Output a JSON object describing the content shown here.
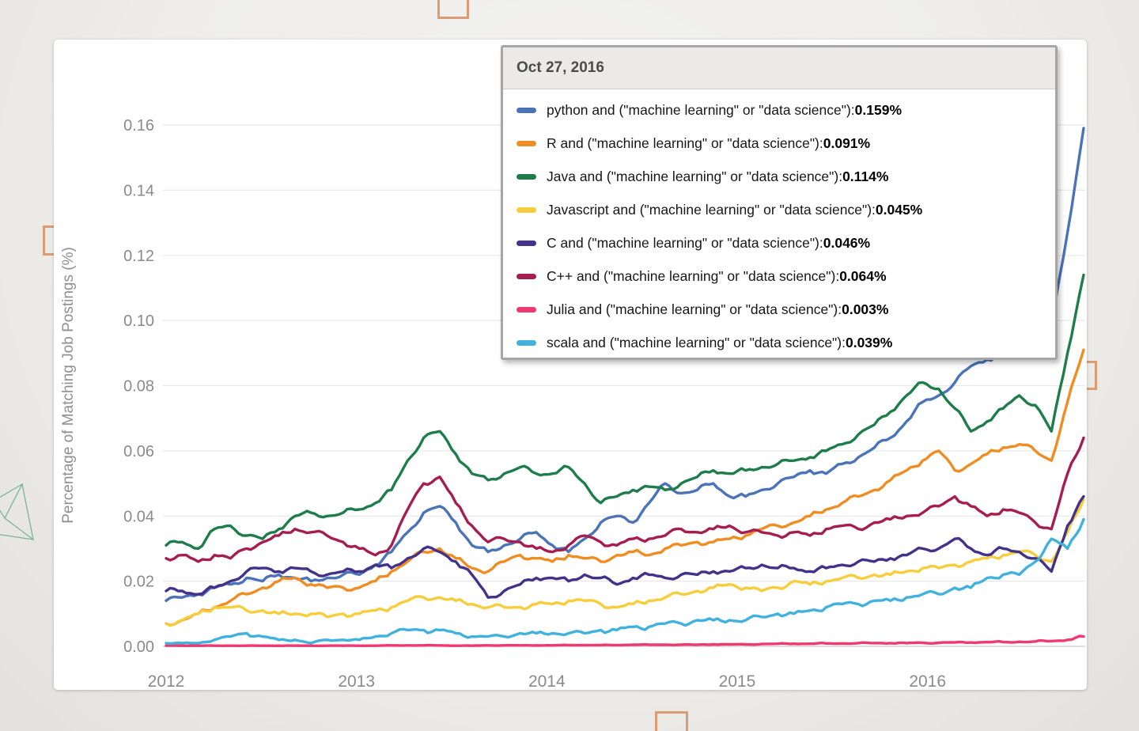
{
  "page": {
    "background_color": "#eeedea",
    "card_color": "#ffffff",
    "decoration_color": "#db9b73",
    "wireframe_color": "#7bb398"
  },
  "tooltip": {
    "date": "Oct 27, 2016"
  },
  "chart_data": {
    "type": "line",
    "title": "",
    "xlabel": "",
    "ylabel": "Percentage of Matching Job Postings (%)",
    "x_axis": {
      "start_label": "2012",
      "end_label": "Oct 27, 2016",
      "tick_years": [
        2012,
        2013,
        2014,
        2015,
        2016
      ],
      "tick_labels": [
        "2012",
        "2013",
        "2014",
        "2015",
        "2016"
      ],
      "points_per_year": 12,
      "range_years": [
        2012.0,
        2016.82
      ]
    },
    "y_axis": {
      "tick_values": [
        0.0,
        0.02,
        0.04,
        0.06,
        0.08,
        0.1,
        0.12,
        0.14,
        0.16
      ],
      "tick_labels": [
        "0.00",
        "0.02",
        "0.04",
        "0.06",
        "0.08",
        "0.10",
        "0.12",
        "0.14",
        "0.16"
      ],
      "ylim": [
        0,
        0.166
      ],
      "grid": "horizontal",
      "grid_color": "#e8e8e8",
      "zero_line_color": "#c9c9c9",
      "tick_text_color": "#8a8a8a"
    },
    "legend_position": "overlay-top-right-tooltip",
    "series": [
      {
        "name": "python",
        "label": "python and (\"machine learning\" or \"data science\")",
        "color": "#4a73b8",
        "tooltip_value": "0.159%",
        "values": [
          0.014,
          0.015,
          0.016,
          0.018,
          0.019,
          0.021,
          0.02,
          0.022,
          0.021,
          0.02,
          0.021,
          0.022,
          0.022,
          0.025,
          0.029,
          0.035,
          0.041,
          0.043,
          0.038,
          0.031,
          0.029,
          0.031,
          0.033,
          0.035,
          0.031,
          0.029,
          0.033,
          0.038,
          0.04,
          0.038,
          0.044,
          0.05,
          0.047,
          0.048,
          0.05,
          0.046,
          0.046,
          0.048,
          0.05,
          0.052,
          0.054,
          0.053,
          0.056,
          0.058,
          0.061,
          0.064,
          0.069,
          0.075,
          0.077,
          0.081,
          0.086,
          0.088,
          0.09,
          0.091,
          0.089,
          0.098,
          0.127,
          0.159
        ]
      },
      {
        "name": "R",
        "label": "R and (\"machine learning\" or \"data science\")",
        "color": "#ef8d22",
        "tooltip_value": "0.091%",
        "values": [
          0.007,
          0.008,
          0.01,
          0.012,
          0.014,
          0.016,
          0.018,
          0.02,
          0.021,
          0.019,
          0.018,
          0.018,
          0.018,
          0.02,
          0.023,
          0.026,
          0.029,
          0.03,
          0.027,
          0.024,
          0.023,
          0.026,
          0.028,
          0.027,
          0.026,
          0.028,
          0.027,
          0.026,
          0.028,
          0.029,
          0.028,
          0.03,
          0.031,
          0.032,
          0.032,
          0.033,
          0.034,
          0.036,
          0.037,
          0.038,
          0.04,
          0.042,
          0.044,
          0.046,
          0.048,
          0.051,
          0.054,
          0.057,
          0.06,
          0.054,
          0.056,
          0.059,
          0.061,
          0.062,
          0.06,
          0.057,
          0.075,
          0.091
        ]
      },
      {
        "name": "Java",
        "label": "Java and (\"machine learning\" or \"data science\")",
        "color": "#1e7d4a",
        "tooltip_value": "0.114%",
        "values": [
          0.031,
          0.032,
          0.03,
          0.036,
          0.037,
          0.034,
          0.033,
          0.036,
          0.04,
          0.041,
          0.04,
          0.041,
          0.042,
          0.044,
          0.048,
          0.057,
          0.064,
          0.066,
          0.059,
          0.053,
          0.051,
          0.053,
          0.055,
          0.053,
          0.053,
          0.055,
          0.05,
          0.044,
          0.046,
          0.048,
          0.049,
          0.048,
          0.05,
          0.052,
          0.054,
          0.053,
          0.054,
          0.055,
          0.056,
          0.057,
          0.058,
          0.06,
          0.062,
          0.065,
          0.068,
          0.072,
          0.077,
          0.081,
          0.079,
          0.073,
          0.066,
          0.069,
          0.073,
          0.077,
          0.074,
          0.066,
          0.09,
          0.114
        ]
      },
      {
        "name": "Javascript",
        "label": "Javascript and (\"machine learning\" or \"data science\")",
        "color": "#f6ce3c",
        "tooltip_value": "0.045%",
        "values": [
          0.007,
          0.008,
          0.01,
          0.012,
          0.012,
          0.011,
          0.011,
          0.01,
          0.01,
          0.01,
          0.009,
          0.01,
          0.01,
          0.011,
          0.012,
          0.014,
          0.015,
          0.015,
          0.014,
          0.013,
          0.012,
          0.012,
          0.012,
          0.013,
          0.013,
          0.014,
          0.014,
          0.013,
          0.012,
          0.013,
          0.014,
          0.015,
          0.016,
          0.017,
          0.018,
          0.019,
          0.018,
          0.017,
          0.018,
          0.02,
          0.019,
          0.02,
          0.021,
          0.021,
          0.022,
          0.022,
          0.023,
          0.024,
          0.024,
          0.025,
          0.026,
          0.027,
          0.028,
          0.029,
          0.028,
          0.026,
          0.035,
          0.045
        ]
      },
      {
        "name": "C",
        "label": "C and (\"machine learning\" or \"data science\")",
        "color": "#443189",
        "tooltip_value": "0.046%",
        "values": [
          0.017,
          0.017,
          0.016,
          0.018,
          0.02,
          0.023,
          0.024,
          0.023,
          0.024,
          0.023,
          0.022,
          0.023,
          0.023,
          0.025,
          0.024,
          0.027,
          0.03,
          0.029,
          0.026,
          0.022,
          0.015,
          0.017,
          0.019,
          0.021,
          0.021,
          0.02,
          0.022,
          0.021,
          0.019,
          0.021,
          0.022,
          0.021,
          0.022,
          0.022,
          0.023,
          0.023,
          0.024,
          0.025,
          0.024,
          0.024,
          0.023,
          0.024,
          0.025,
          0.026,
          0.026,
          0.027,
          0.028,
          0.03,
          0.03,
          0.033,
          0.03,
          0.028,
          0.03,
          0.029,
          0.027,
          0.023,
          0.037,
          0.046
        ]
      },
      {
        "name": "C++",
        "label": "C++ and (\"machine learning\" or \"data science\")",
        "color": "#a61e50",
        "tooltip_value": "0.064%",
        "values": [
          0.027,
          0.028,
          0.026,
          0.028,
          0.027,
          0.03,
          0.032,
          0.034,
          0.036,
          0.035,
          0.034,
          0.032,
          0.03,
          0.028,
          0.031,
          0.042,
          0.05,
          0.052,
          0.044,
          0.037,
          0.032,
          0.033,
          0.032,
          0.03,
          0.029,
          0.031,
          0.034,
          0.032,
          0.031,
          0.033,
          0.033,
          0.034,
          0.036,
          0.035,
          0.036,
          0.037,
          0.035,
          0.035,
          0.034,
          0.035,
          0.034,
          0.036,
          0.037,
          0.036,
          0.038,
          0.039,
          0.04,
          0.041,
          0.043,
          0.046,
          0.043,
          0.04,
          0.042,
          0.041,
          0.038,
          0.036,
          0.053,
          0.064
        ]
      },
      {
        "name": "Julia",
        "label": "Julia and (\"machine learning\" or \"data science\")",
        "color": "#ee3a71",
        "tooltip_value": "0.003%",
        "values": [
          0.0002,
          0.0002,
          0.0002,
          0.0002,
          0.0002,
          0.0002,
          0.0002,
          0.0002,
          0.0002,
          0.0002,
          0.0002,
          0.0002,
          0.0002,
          0.0002,
          0.0003,
          0.0003,
          0.0003,
          0.0003,
          0.0002,
          0.0002,
          0.0003,
          0.0003,
          0.0003,
          0.0003,
          0.0003,
          0.0004,
          0.0004,
          0.0004,
          0.0004,
          0.0005,
          0.0005,
          0.0005,
          0.0005,
          0.0005,
          0.0006,
          0.0006,
          0.0006,
          0.0007,
          0.0008,
          0.0008,
          0.0008,
          0.0009,
          0.0009,
          0.001,
          0.001,
          0.001,
          0.001,
          0.0011,
          0.0011,
          0.0012,
          0.0012,
          0.0013,
          0.0013,
          0.0014,
          0.0015,
          0.0016,
          0.002,
          0.003
        ]
      },
      {
        "name": "scala",
        "label": "scala and (\"machine learning\" or \"data science\")",
        "color": "#41b1de",
        "tooltip_value": "0.039%",
        "values": [
          0.001,
          0.001,
          0.001,
          0.002,
          0.003,
          0.004,
          0.003,
          0.002,
          0.002,
          0.001,
          0.002,
          0.002,
          0.002,
          0.003,
          0.004,
          0.005,
          0.005,
          0.005,
          0.004,
          0.003,
          0.003,
          0.003,
          0.004,
          0.004,
          0.004,
          0.004,
          0.004,
          0.005,
          0.005,
          0.006,
          0.006,
          0.007,
          0.007,
          0.008,
          0.008,
          0.008,
          0.008,
          0.009,
          0.01,
          0.01,
          0.011,
          0.012,
          0.013,
          0.013,
          0.014,
          0.014,
          0.015,
          0.016,
          0.016,
          0.018,
          0.018,
          0.021,
          0.022,
          0.022,
          0.026,
          0.033,
          0.03,
          0.039
        ]
      }
    ]
  }
}
